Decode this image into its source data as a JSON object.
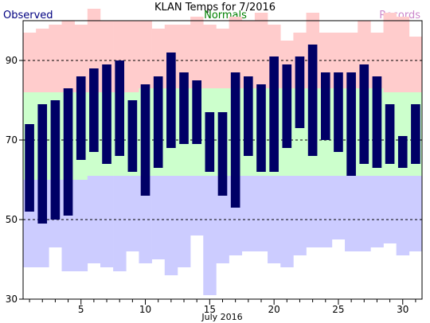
{
  "chart_data": {
    "type": "bar",
    "title": "KLAN Temps for 7/2016",
    "legend": [
      {
        "label": "Observed",
        "color": "#000080"
      },
      {
        "label": "Normals",
        "color": "#008000"
      },
      {
        "label": "Records",
        "color": "#cc88cc"
      }
    ],
    "xlabel": "July 2016",
    "x_ticks": [
      5,
      10,
      15,
      20,
      25,
      30
    ],
    "y_ticks": [
      30,
      50,
      70,
      90
    ],
    "ylim": [
      30,
      100
    ],
    "xlim": [
      0.5,
      31.5
    ],
    "grid_dashed_at": [
      50,
      70,
      90
    ],
    "colors": {
      "observed": "#000066",
      "normal_band": "#ccffcc",
      "record_high_band": "#ffcccc",
      "record_low_band": "#ccccff",
      "grid": "#000000"
    },
    "days": [
      1,
      2,
      3,
      4,
      5,
      6,
      7,
      8,
      9,
      10,
      11,
      12,
      13,
      14,
      15,
      16,
      17,
      18,
      19,
      20,
      21,
      22,
      23,
      24,
      25,
      26,
      27,
      28,
      29,
      30,
      31
    ],
    "observed_high": [
      74,
      79,
      80,
      83,
      86,
      88,
      89,
      90,
      80,
      84,
      86,
      92,
      87,
      85,
      77,
      77,
      87,
      86,
      84,
      91,
      89,
      91,
      94,
      87,
      87,
      87,
      89,
      86,
      79,
      71,
      79
    ],
    "observed_low": [
      52,
      49,
      50,
      51,
      65,
      67,
      64,
      66,
      62,
      56,
      63,
      68,
      69,
      69,
      62,
      56,
      53,
      66,
      62,
      62,
      68,
      73,
      66,
      70,
      67,
      61,
      64,
      63,
      64,
      63,
      64
    ],
    "normal_high": [
      82,
      82,
      82,
      82,
      82,
      82,
      82,
      82,
      82,
      83,
      83,
      83,
      83,
      83,
      83,
      83,
      83,
      83,
      83,
      83,
      83,
      83,
      83,
      83,
      83,
      83,
      83,
      83,
      82,
      82,
      82
    ],
    "normal_low": [
      60,
      60,
      60,
      60,
      60,
      61,
      61,
      61,
      61,
      61,
      61,
      61,
      61,
      61,
      61,
      61,
      61,
      61,
      61,
      61,
      61,
      61,
      61,
      61,
      61,
      61,
      61,
      61,
      61,
      61,
      61
    ],
    "record_high": [
      97,
      98,
      99,
      100,
      99,
      103,
      100,
      100,
      100,
      100,
      98,
      99,
      99,
      101,
      99,
      98,
      101,
      100,
      102,
      99,
      95,
      97,
      102,
      97,
      97,
      97,
      100,
      97,
      102,
      101,
      96
    ],
    "record_low": [
      38,
      38,
      43,
      37,
      37,
      39,
      38,
      37,
      42,
      39,
      40,
      36,
      38,
      46,
      31,
      39,
      41,
      42,
      42,
      39,
      38,
      41,
      43,
      43,
      45,
      42,
      42,
      43,
      44,
      41,
      42
    ]
  }
}
